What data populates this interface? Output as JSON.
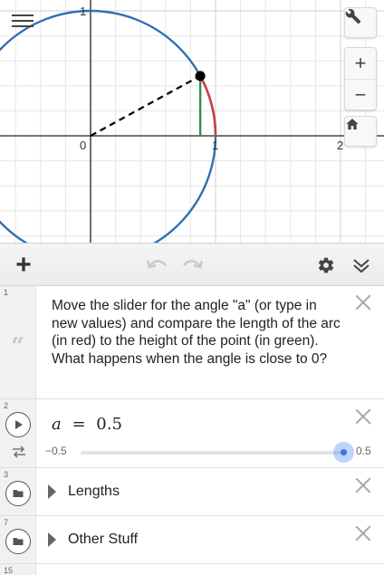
{
  "graph": {
    "tick_labels": {
      "x_origin": "0",
      "x_one": "1",
      "x_two": "2",
      "y_one": "1"
    },
    "colors": {
      "circle": "#2d70b3",
      "arc": "#c74440",
      "height": "#388c46",
      "radius": "#000000",
      "axis": "#222222",
      "grid": "#e6e6e6"
    },
    "icons": {
      "menu": "menu-icon",
      "settings": "wrench-icon",
      "zoom_in": "plus-icon",
      "zoom_out": "minus-icon",
      "home": "home-icon"
    },
    "zoom_in_label": "+",
    "zoom_out_label": "−"
  },
  "toolbar": {
    "add_label": "+",
    "icons": {
      "undo": "undo-icon",
      "redo": "redo-icon",
      "settings": "gear-icon",
      "collapse": "double-chevron-down-icon"
    }
  },
  "expressions": [
    {
      "index": "1",
      "type": "note",
      "text": "Move the slider for the angle \"a\" (or type in new values) and compare the length of the arc (in red) to the height of the point (in green). What happens when the angle is close to 0?",
      "icon": "quote-icon",
      "quote_glyph": "“"
    },
    {
      "index": "2",
      "type": "slider",
      "variable": "a",
      "equals": "=",
      "value": "0.5",
      "min": "−0.5",
      "max": "0.5",
      "fraction": 1.0,
      "icons": [
        "play-icon",
        "loop-icon"
      ]
    },
    {
      "index": "3",
      "type": "folder",
      "label": "Lengths",
      "icon": "folder-icon"
    },
    {
      "index": "7",
      "type": "folder",
      "label": "Other Stuff",
      "icon": "folder-icon"
    },
    {
      "index": "15",
      "type": "empty"
    }
  ]
}
